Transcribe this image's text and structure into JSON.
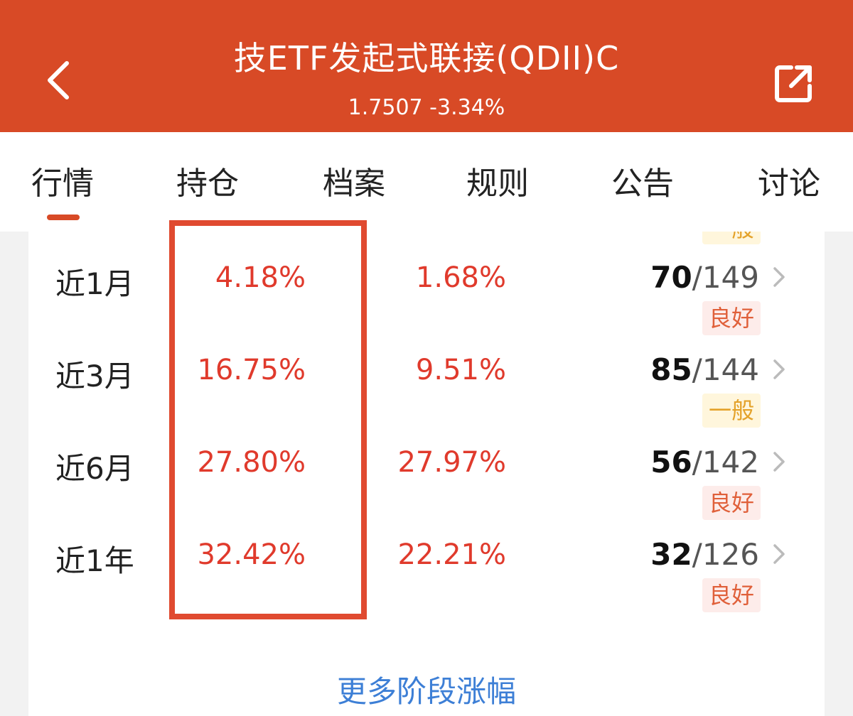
{
  "header": {
    "title": "技ETF发起式联接(QDII)C",
    "price_change": "1.7507 -3.34%"
  },
  "icons": {
    "back": "chevron-left-icon",
    "share": "share-icon",
    "row_more": "chevron-right-icon"
  },
  "tabs": [
    "行情",
    "持仓",
    "档案",
    "规则",
    "公告",
    "讨论"
  ],
  "active_tab": "行情",
  "partial_badge": "一般",
  "rows": [
    {
      "period": "近1月",
      "value1": "4.18%",
      "value2": "1.68%",
      "rank": "70",
      "slash": "/",
      "total": "149",
      "rating": "良好"
    },
    {
      "period": "近3月",
      "value1": "16.75%",
      "value2": "9.51%",
      "rank": "85",
      "slash": "/",
      "total": "144",
      "rating": "一般"
    },
    {
      "period": "近6月",
      "value1": "27.80%",
      "value2": "27.97%",
      "rank": "56",
      "slash": "/",
      "total": "142",
      "rating": "良好"
    },
    {
      "period": "近1年",
      "value1": "32.42%",
      "value2": "22.21%",
      "rank": "32",
      "slash": "/",
      "total": "126",
      "rating": "良好"
    }
  ],
  "more_link": "更多阶段涨幅",
  "colors": {
    "header_bg": "#d84a26",
    "positive": "#e03a2c",
    "good_badge": "#e0603a",
    "normal_badge": "#e4a22a",
    "link": "#3d7fd6",
    "highlight_box": "#e04a30"
  }
}
